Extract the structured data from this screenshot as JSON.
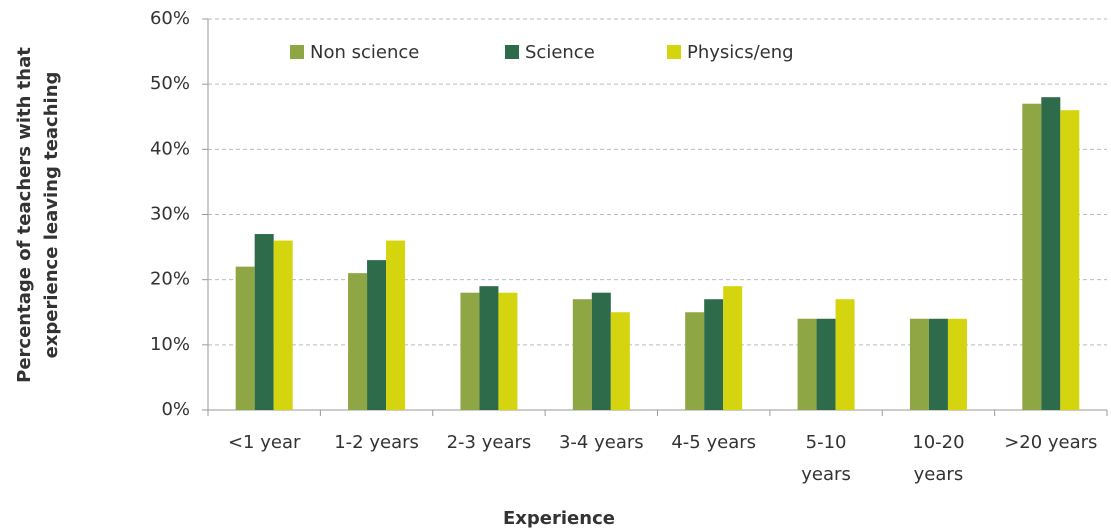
{
  "chart_data": {
    "type": "bar",
    "y_label": [
      "Percentage of teachers with that",
      "experience leaving teaching"
    ],
    "x_label": "Experience",
    "categories": [
      "<1 year",
      "1-2 years",
      "2-3 years",
      "3-4 years",
      "4-5 years",
      "5-10 years",
      "10-20 years",
      ">20 years"
    ],
    "series": [
      {
        "name": "Non science",
        "color": "#8fa644",
        "values": [
          22,
          21,
          18,
          17,
          15,
          14,
          14,
          47
        ]
      },
      {
        "name": "Science",
        "color": "#2e6b4a",
        "values": [
          27,
          23,
          19,
          18,
          17,
          14,
          14,
          48
        ]
      },
      {
        "name": "Physics/eng",
        "color": "#d4d40f",
        "values": [
          26,
          26,
          18,
          15,
          19,
          17,
          14,
          46
        ]
      }
    ],
    "ylim": [
      0,
      60
    ],
    "yticks": [
      {
        "value": 0,
        "label": "0%"
      },
      {
        "value": 10,
        "label": "10%"
      },
      {
        "value": 20,
        "label": "20%"
      },
      {
        "value": 30,
        "label": "30%"
      },
      {
        "value": 40,
        "label": "40%"
      },
      {
        "value": 50,
        "label": "50%"
      },
      {
        "value": 60,
        "label": "60%"
      }
    ],
    "grid": true,
    "legend": "top"
  }
}
